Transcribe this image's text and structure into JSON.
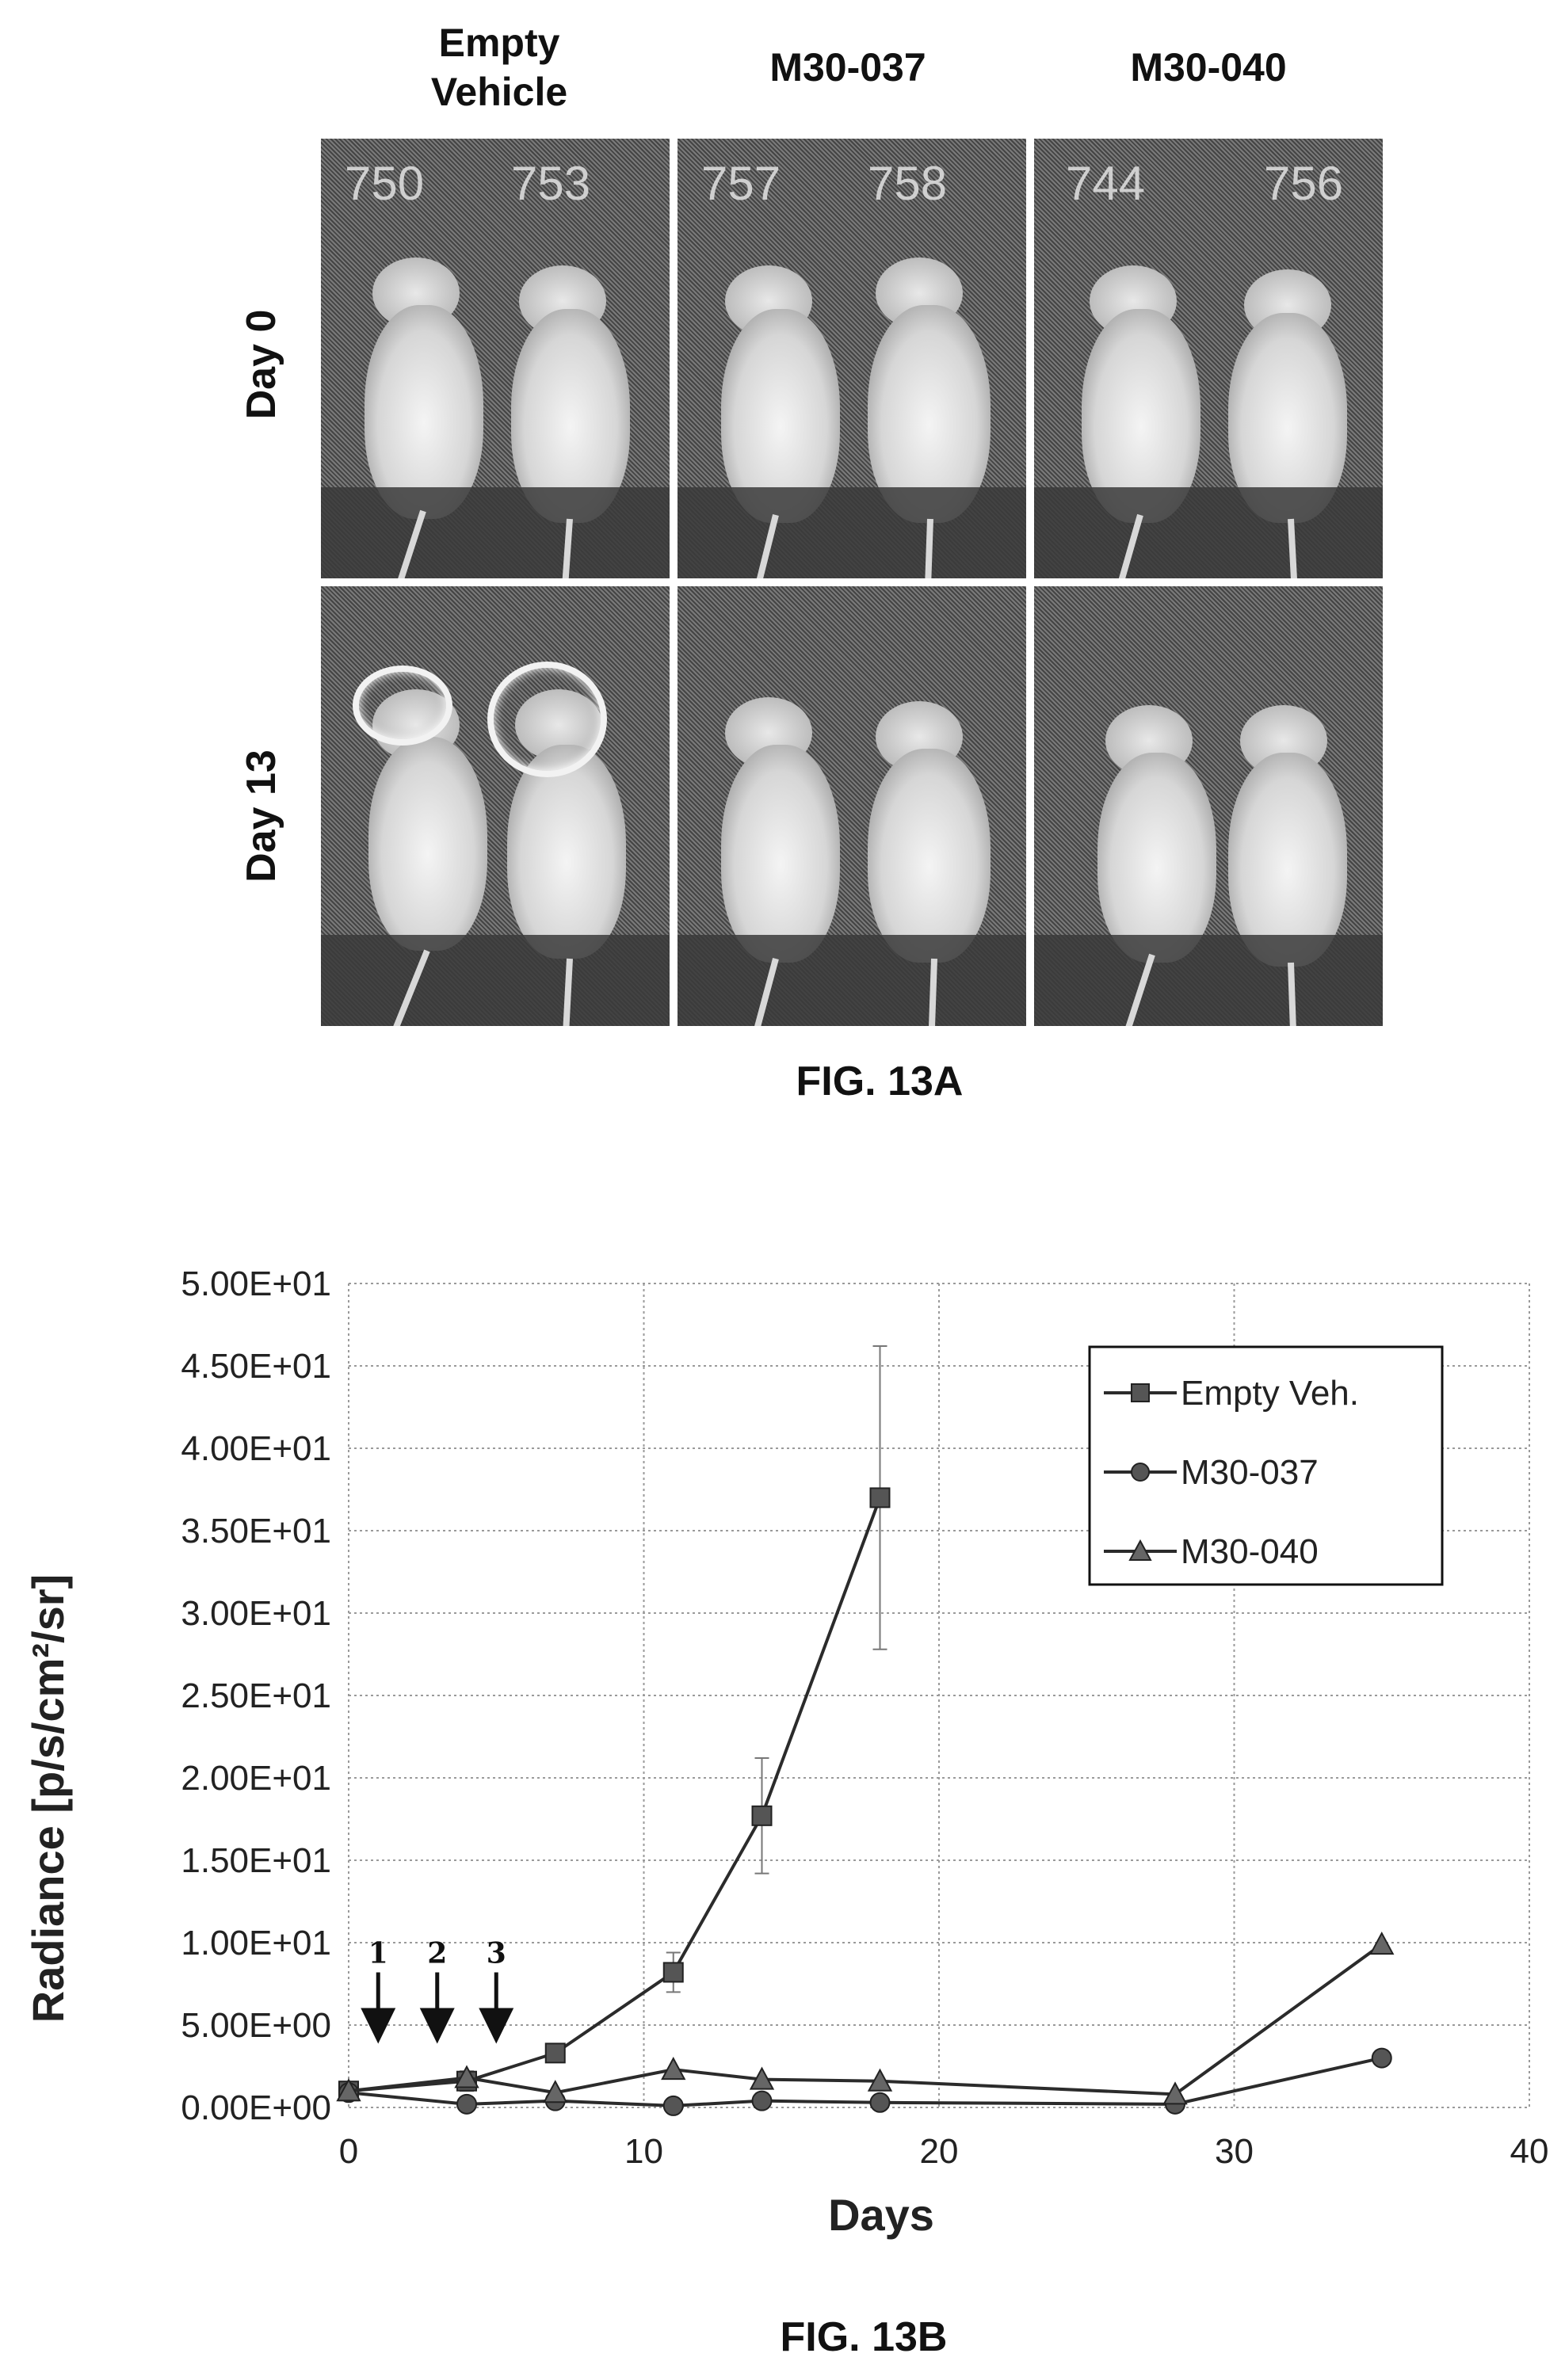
{
  "fig13a": {
    "columns": [
      "Empty\nVehicle",
      "M30-037",
      "M30-040"
    ],
    "rows": [
      "Day 0",
      "Day 13"
    ],
    "mouse_ids": {
      "empty_vehicle": [
        "750",
        "753"
      ],
      "m30_037": [
        "757",
        "758"
      ],
      "m30_040": [
        "744",
        "756"
      ]
    },
    "caption": "FIG. 13A"
  },
  "fig13b": {
    "caption": "FIG. 13B",
    "dose_markers": [
      "1",
      "2",
      "3"
    ],
    "chart_data": {
      "type": "line",
      "xlabel": "Days",
      "ylabel": "Radiance [p/s/cm²/sr]",
      "xlim": [
        0,
        40
      ],
      "ylim": [
        0,
        50
      ],
      "x_ticks": [
        "0",
        "10",
        "20",
        "30",
        "40"
      ],
      "y_ticks": [
        "0.00E+00",
        "5.00E+00",
        "1.00E+01",
        "1.50E+01",
        "2.00E+01",
        "2.50E+01",
        "3.00E+01",
        "3.50E+01",
        "4.00E+01",
        "4.50E+01",
        "5.00E+01"
      ],
      "grid": true,
      "legend_position": "top-right",
      "dose_days": [
        1,
        3,
        5
      ],
      "series": [
        {
          "name": "Empty Veh.",
          "marker": "square",
          "x": [
            0,
            4,
            7,
            11,
            14,
            18
          ],
          "y": [
            1.0,
            1.6,
            3.3,
            8.2,
            17.7,
            37.0
          ],
          "error": [
            0.3,
            0.6,
            0.4,
            1.2,
            3.5,
            9.2
          ]
        },
        {
          "name": "M30-037",
          "marker": "circle",
          "x": [
            0,
            4,
            7,
            11,
            14,
            18,
            28,
            35
          ],
          "y": [
            0.9,
            0.2,
            0.4,
            0.1,
            0.4,
            0.3,
            0.2,
            3.0
          ]
        },
        {
          "name": "M30-040",
          "marker": "triangle",
          "x": [
            0,
            4,
            7,
            11,
            14,
            18,
            28,
            35
          ],
          "y": [
            1.0,
            1.8,
            0.9,
            2.3,
            1.7,
            1.6,
            0.8,
            9.9
          ]
        }
      ]
    }
  }
}
